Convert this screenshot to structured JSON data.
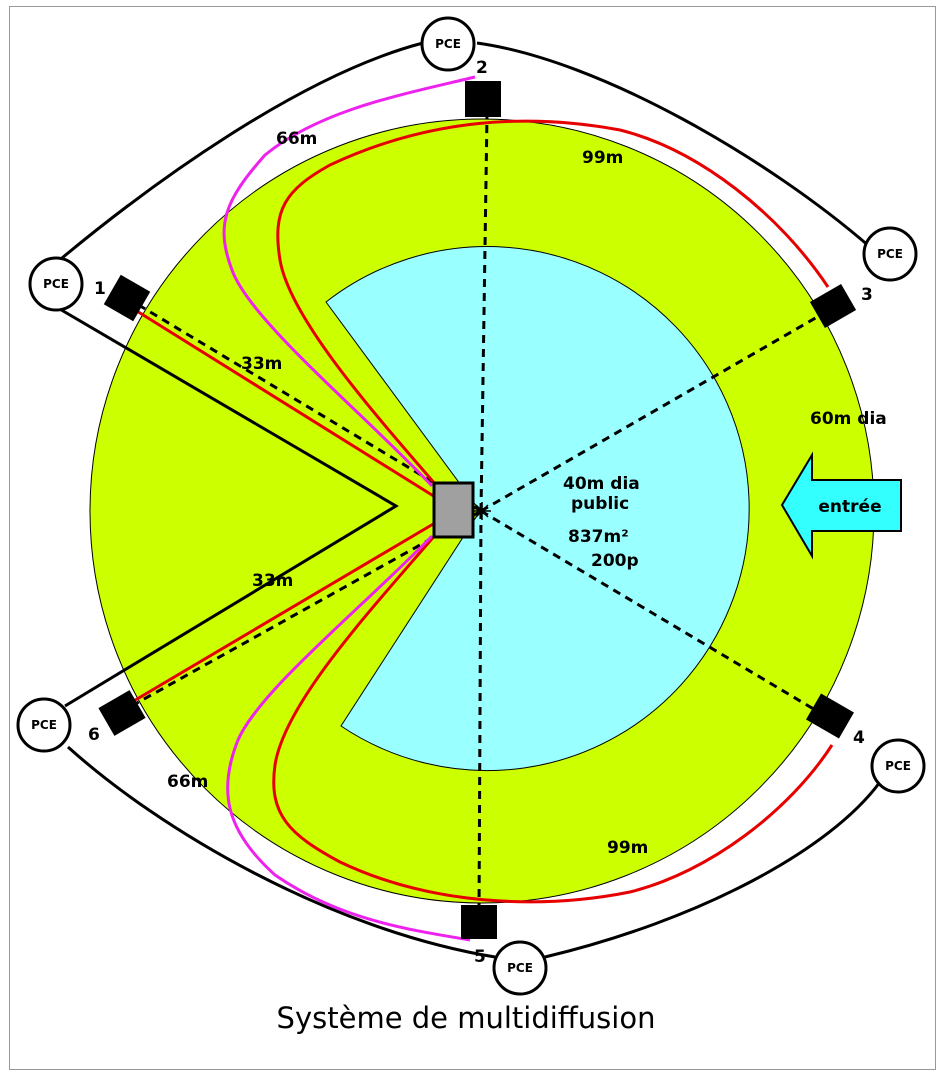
{
  "diagram": {
    "caption": "Système de multidiffusion",
    "colors": {
      "outer_area": "#ccff00",
      "public_area": "#99ffff",
      "arrow_fill": "#33ffff",
      "cable_red": "#e60000",
      "cable_pink": "#ee22ee",
      "center_box": "#a0a0a0"
    },
    "labels": {
      "outer_diameter": "60m dia",
      "inner_line1": "40m dia",
      "inner_line2": "public",
      "area": "837m²",
      "capacity": "200p",
      "entrance": "entrée",
      "dist_33_top": "33m",
      "dist_33_bottom": "33m",
      "dist_66_top": "66m",
      "dist_66_bottom": "66m",
      "dist_99_top": "99m",
      "dist_99_bottom": "99m"
    },
    "speakers": [
      "1",
      "2",
      "3",
      "4",
      "5",
      "6"
    ],
    "pce_label": "PCE"
  }
}
